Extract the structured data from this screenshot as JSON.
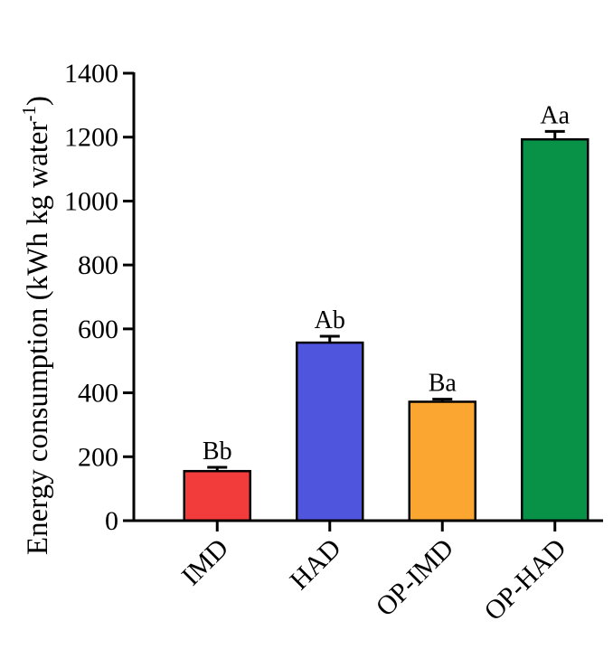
{
  "chart_data": {
    "type": "bar",
    "ylabel": "Energy consumption (kWh kg water",
    "ylabel_superscript": "-1",
    "ylabel_close": ")",
    "categories": [
      "IMD",
      "HAD",
      "OP-IMD",
      "OP-HAD"
    ],
    "values": [
      155,
      557,
      372,
      1193
    ],
    "errors": [
      12,
      20,
      8,
      25
    ],
    "data_labels": [
      "Bb",
      "Ab",
      "Ba",
      "Aa"
    ],
    "colors": [
      "#f23b3b",
      "#5055de",
      "#fba631",
      "#079247"
    ],
    "ylim": [
      0,
      1400
    ],
    "yticks": [
      0,
      200,
      400,
      600,
      800,
      1000,
      1200,
      1400
    ],
    "grid": false,
    "legend": "none"
  }
}
